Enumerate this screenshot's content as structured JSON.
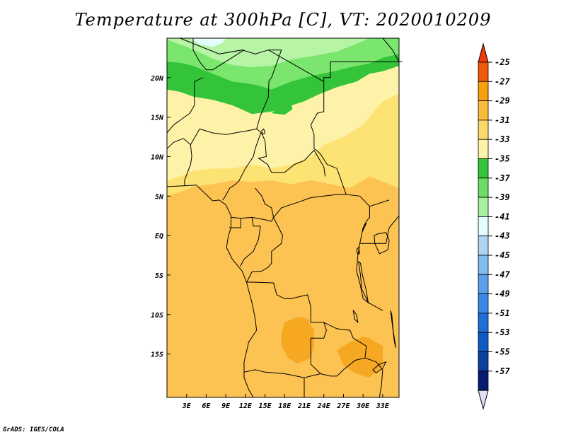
{
  "title": "Temperature at 300hPa [C], VT: 2020010209",
  "credit": "GrADS: IGES/COLA",
  "map": {
    "lon_range": [
      0,
      35.5
    ],
    "lat_range": [
      -20.5,
      25
    ],
    "x_ticks": [
      {
        "lon": 3,
        "label": "3E"
      },
      {
        "lon": 6,
        "label": "6E"
      },
      {
        "lon": 9,
        "label": "9E"
      },
      {
        "lon": 12,
        "label": "12E"
      },
      {
        "lon": 15,
        "label": "15E"
      },
      {
        "lon": 18,
        "label": "18E"
      },
      {
        "lon": 21,
        "label": "21E"
      },
      {
        "lon": 24,
        "label": "24E"
      },
      {
        "lon": 27,
        "label": "27E"
      },
      {
        "lon": 30,
        "label": "30E"
      },
      {
        "lon": 33,
        "label": "33E"
      }
    ],
    "y_ticks": [
      {
        "lat": 20,
        "label": "20N"
      },
      {
        "lat": 15,
        "label": "15N"
      },
      {
        "lat": 10,
        "label": "10N"
      },
      {
        "lat": 5,
        "label": "5N"
      },
      {
        "lat": 0,
        "label": "EQ"
      },
      {
        "lat": -5,
        "label": "5S"
      },
      {
        "lat": -10,
        "label": "10S"
      },
      {
        "lat": -15,
        "label": "15S"
      }
    ],
    "fill_colors": {
      "t37": "#33c43a",
      "t39": "#7ae66e",
      "t41": "#b7f4a6",
      "t43": "#e4fefe",
      "t33": "#fef2a8",
      "t31": "#fde274",
      "t29": "#fcc252",
      "t27": "#f7a823"
    }
  },
  "colorbar": {
    "levels": [
      "-25",
      "-27",
      "-29",
      "-31",
      "-33",
      "-35",
      "-37",
      "-39",
      "-41",
      "-43",
      "-45",
      "-47",
      "-49",
      "-51",
      "-53",
      "-55",
      "-57"
    ],
    "colors": [
      "#f05a08",
      "#f99e0c",
      "#fbbc3c",
      "#fdd96a",
      "#fef2a8",
      "#33c43a",
      "#6cdc64",
      "#a8efa0",
      "#e4fefe",
      "#aed4f4",
      "#82bcef",
      "#5aa0ea",
      "#3a88e4",
      "#1e6ed8",
      "#105ac4",
      "#0a40a0",
      "#061a70"
    ],
    "top_arrow_color": "#f03a0a",
    "bottom_arrow_color": "#e0e0f8"
  }
}
